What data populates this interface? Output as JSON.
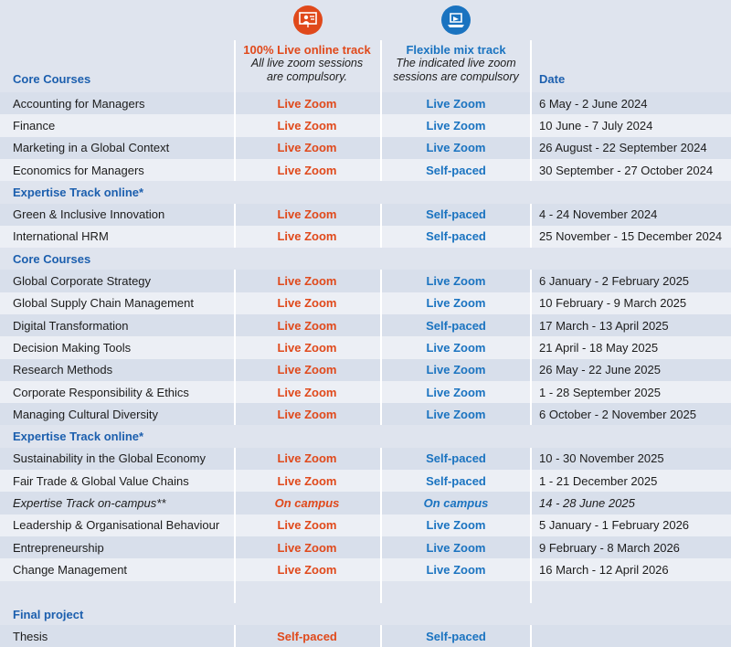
{
  "header": {
    "section_label": "Core Courses",
    "live_track_title": "100% Live online track",
    "live_track_note": [
      "All live zoom sessions",
      "are compulsory."
    ],
    "flex_track_title": "Flexible mix track",
    "flex_track_note": [
      "The indicated live zoom",
      "sessions are compulsory"
    ],
    "date_label": "Date",
    "live_icon": "person-presentation-icon",
    "flex_icon": "laptop-online-icon"
  },
  "colors": {
    "orange": "#e0491b",
    "blue": "#1a73c0",
    "band_light": "#eceff5",
    "band_dark": "#d8dfeb",
    "background": "#dfe4ee"
  },
  "rows": [
    {
      "type": "course",
      "course": "Accounting for Managers",
      "live": "Live Zoom",
      "flex": "Live Zoom",
      "date": "6 May - 2 June 2024"
    },
    {
      "type": "course",
      "course": "Finance",
      "live": "Live Zoom",
      "flex": "Live Zoom",
      "date": "10 June - 7 July 2024"
    },
    {
      "type": "course",
      "course": "Marketing in a Global Context",
      "live": "Live Zoom",
      "flex": "Live Zoom",
      "date": "26 August - 22 September 2024"
    },
    {
      "type": "course",
      "course": "Economics for Managers",
      "live": "Live Zoom",
      "flex": "Self-paced",
      "date": "30 September - 27 October 2024"
    },
    {
      "type": "section",
      "label": "Expertise Track online*"
    },
    {
      "type": "course",
      "course": "Green & Inclusive Innovation",
      "live": "Live Zoom",
      "flex": "Self-paced",
      "date": "4 - 24 November 2024"
    },
    {
      "type": "course",
      "course": "International HRM",
      "live": "Live Zoom",
      "flex": "Self-paced",
      "date": "25 November - 15 December 2024"
    },
    {
      "type": "section",
      "label": "Core Courses"
    },
    {
      "type": "course",
      "course": "Global Corporate Strategy",
      "live": "Live Zoom",
      "flex": "Live Zoom",
      "date": "6 January - 2 February 2025"
    },
    {
      "type": "course",
      "course": "Global Supply Chain Management",
      "live": "Live Zoom",
      "flex": "Live Zoom",
      "date": "10 February - 9 March 2025"
    },
    {
      "type": "course",
      "course": "Digital Transformation",
      "live": "Live Zoom",
      "flex": "Self-paced",
      "date": "17 March - 13 April 2025"
    },
    {
      "type": "course",
      "course": "Decision Making Tools",
      "live": "Live Zoom",
      "flex": "Live Zoom",
      "date": "21 April - 18 May 2025"
    },
    {
      "type": "course",
      "course": "Research Methods",
      "live": "Live Zoom",
      "flex": "Live Zoom",
      "date": "26 May - 22 June 2025"
    },
    {
      "type": "course",
      "course": "Corporate Responsibility & Ethics",
      "live": "Live Zoom",
      "flex": "Live Zoom",
      "date": "1 - 28 September 2025"
    },
    {
      "type": "course",
      "course": "Managing Cultural Diversity",
      "live": "Live Zoom",
      "flex": "Live Zoom",
      "date": "6 October - 2 November 2025"
    },
    {
      "type": "section",
      "label": "Expertise Track online*"
    },
    {
      "type": "course",
      "course": "Sustainability in the Global Economy",
      "live": "Live Zoom",
      "flex": "Self-paced",
      "date": "10 - 30 November 2025"
    },
    {
      "type": "course",
      "course": "Fair Trade & Global Value Chains",
      "live": "Live Zoom",
      "flex": "Self-paced",
      "date": "1 - 21 December 2025"
    },
    {
      "type": "italic",
      "course": "Expertise Track on-campus**",
      "live": "On campus",
      "flex": "On campus",
      "date": "14 - 28 June 2025"
    },
    {
      "type": "course",
      "course": "Leadership & Organisational Behaviour",
      "live": "Live Zoom",
      "flex": "Live Zoom",
      "date": "5 January - 1 February 2026"
    },
    {
      "type": "course",
      "course": "Entrepreneurship",
      "live": "Live Zoom",
      "flex": "Live Zoom",
      "date": "9 February - 8 March 2026"
    },
    {
      "type": "course",
      "course": "Change Management",
      "live": "Live Zoom",
      "flex": "Live Zoom",
      "date": "16 March - 12 April 2026"
    },
    {
      "type": "spacer"
    },
    {
      "type": "section",
      "label": "Final project"
    },
    {
      "type": "course",
      "course": "Thesis",
      "live": "Self-paced",
      "flex": "Self-paced",
      "date": ""
    }
  ]
}
